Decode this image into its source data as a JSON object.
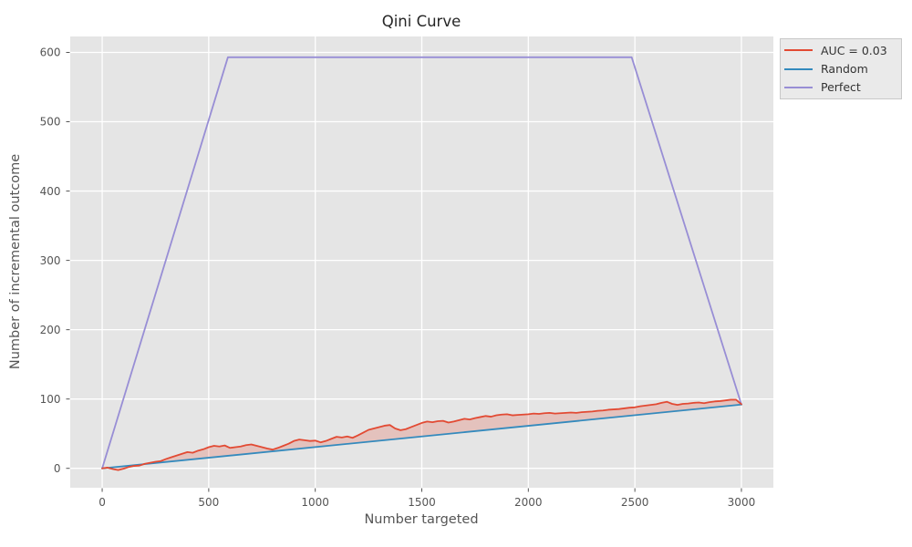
{
  "colors": {
    "figure_background": "#ffffff",
    "axes_background": "#e5e5e5",
    "grid": "#ffffff",
    "tick": "#555555",
    "title_text": "#262626",
    "label_text": "#555555",
    "legend_background": "#eaeaea",
    "legend_border": "#c8c8c8",
    "series_red": "#e24a33",
    "series_blue": "#348abd",
    "series_purple": "#988ed5"
  },
  "chart_data": {
    "type": "line",
    "title": "Qini Curve",
    "xlabel": "Number targeted",
    "ylabel": "Number of incremental outcome",
    "xlim": [
      -150,
      3150
    ],
    "ylim": [
      -28,
      623
    ],
    "x_ticks": [
      0,
      500,
      1000,
      1500,
      2000,
      2500,
      3000
    ],
    "y_ticks": [
      0,
      100,
      200,
      300,
      400,
      500,
      600
    ],
    "grid": true,
    "legend_position": "outside-top-right",
    "series": [
      {
        "name": "AUC = 0.03",
        "color": "#e24a33",
        "fill_to": "Random",
        "fill_opacity": 0.22,
        "x": [
          0,
          25,
          50,
          75,
          100,
          125,
          150,
          175,
          200,
          225,
          250,
          275,
          300,
          325,
          350,
          375,
          400,
          425,
          450,
          475,
          500,
          525,
          550,
          575,
          600,
          625,
          650,
          675,
          700,
          725,
          750,
          775,
          800,
          825,
          850,
          875,
          900,
          925,
          950,
          975,
          1000,
          1025,
          1050,
          1075,
          1100,
          1125,
          1150,
          1175,
          1200,
          1225,
          1250,
          1275,
          1300,
          1325,
          1350,
          1375,
          1400,
          1425,
          1450,
          1475,
          1500,
          1525,
          1550,
          1575,
          1600,
          1625,
          1650,
          1675,
          1700,
          1725,
          1750,
          1775,
          1800,
          1825,
          1850,
          1875,
          1900,
          1925,
          1950,
          1975,
          2000,
          2025,
          2050,
          2075,
          2100,
          2125,
          2150,
          2175,
          2200,
          2225,
          2250,
          2275,
          2300,
          2325,
          2350,
          2375,
          2400,
          2425,
          2450,
          2475,
          2500,
          2525,
          2550,
          2575,
          2600,
          2625,
          2650,
          2675,
          2700,
          2725,
          2750,
          2775,
          2800,
          2825,
          2850,
          2875,
          2900,
          2925,
          2950,
          2975,
          3000
        ],
        "y": [
          0,
          1,
          -1,
          -2.5,
          -0.5,
          2,
          3.5,
          4,
          6.5,
          8,
          9.5,
          10.5,
          13.5,
          16,
          18.5,
          21,
          23.5,
          22.5,
          25.5,
          27.5,
          30.5,
          32.5,
          31.5,
          33,
          29.5,
          30.5,
          31.5,
          33.5,
          34.5,
          32.5,
          30.5,
          28.5,
          27,
          29.5,
          32.5,
          35.5,
          39.5,
          41.5,
          40.5,
          39.5,
          40,
          37.5,
          39.5,
          42.5,
          45.5,
          44.5,
          46,
          44,
          47.5,
          51.5,
          55.5,
          57.5,
          59.5,
          61.5,
          62.5,
          57.5,
          55,
          56.5,
          59.5,
          62.5,
          65.5,
          67.5,
          66.5,
          68,
          68.5,
          66,
          67.5,
          69.5,
          71.5,
          70.5,
          72.5,
          74,
          75.5,
          74.5,
          76.5,
          77.5,
          78,
          76.5,
          77,
          77.5,
          78,
          79,
          78.5,
          79.5,
          80,
          79,
          79.5,
          80,
          80.5,
          80,
          81,
          81.5,
          82,
          83,
          83.5,
          84.5,
          85,
          85.5,
          86.5,
          87.5,
          88,
          89.5,
          90.5,
          91.5,
          92.5,
          94.5,
          96,
          93,
          91.5,
          93,
          93.5,
          94.5,
          95,
          94,
          95.5,
          96.5,
          97,
          98,
          99,
          99,
          92.5
        ]
      },
      {
        "name": "Random",
        "color": "#348abd",
        "x": [
          0,
          3000
        ],
        "y": [
          0,
          92
        ]
      },
      {
        "name": "Perfect",
        "color": "#988ed5",
        "x": [
          0,
          590,
          2485,
          3000
        ],
        "y": [
          0,
          593,
          593,
          92
        ]
      }
    ]
  }
}
